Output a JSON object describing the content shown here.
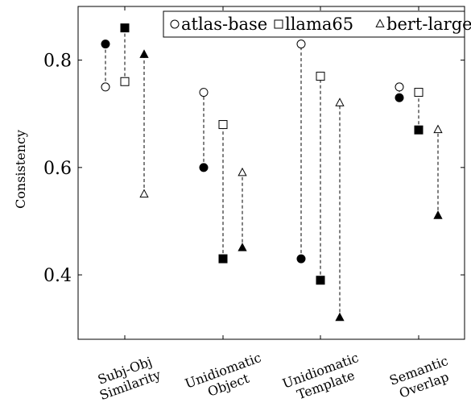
{
  "chart_data": {
    "type": "scatter",
    "ylabel": "Consistency",
    "xlabel": "",
    "ylim": [
      0.28,
      0.9
    ],
    "yticks": [
      0.4,
      0.6,
      0.8
    ],
    "ytick_labels": [
      "0.4",
      "0.6",
      "0.8"
    ],
    "categories": [
      {
        "line1": "Subj-Obj",
        "line2": "Similarity"
      },
      {
        "line1": "Unidiomatic",
        "line2": "Object"
      },
      {
        "line1": "Unidiomatic",
        "line2": "Template"
      },
      {
        "line1": "Semantic",
        "line2": "Overlap"
      }
    ],
    "legend_position": "top-right",
    "series": [
      {
        "name": "atlas-base",
        "marker": "circle",
        "filled": [
          0.83,
          0.6,
          0.43,
          0.73
        ],
        "open": [
          0.75,
          0.74,
          0.83,
          0.75
        ]
      },
      {
        "name": "llama65",
        "marker": "square",
        "filled": [
          0.86,
          0.43,
          0.39,
          0.67
        ],
        "open": [
          0.76,
          0.68,
          0.77,
          0.74
        ]
      },
      {
        "name": "bert-large",
        "marker": "triangle",
        "filled": [
          0.81,
          0.45,
          0.32,
          0.51
        ],
        "open": [
          0.55,
          0.59,
          0.72,
          0.67
        ]
      }
    ]
  }
}
